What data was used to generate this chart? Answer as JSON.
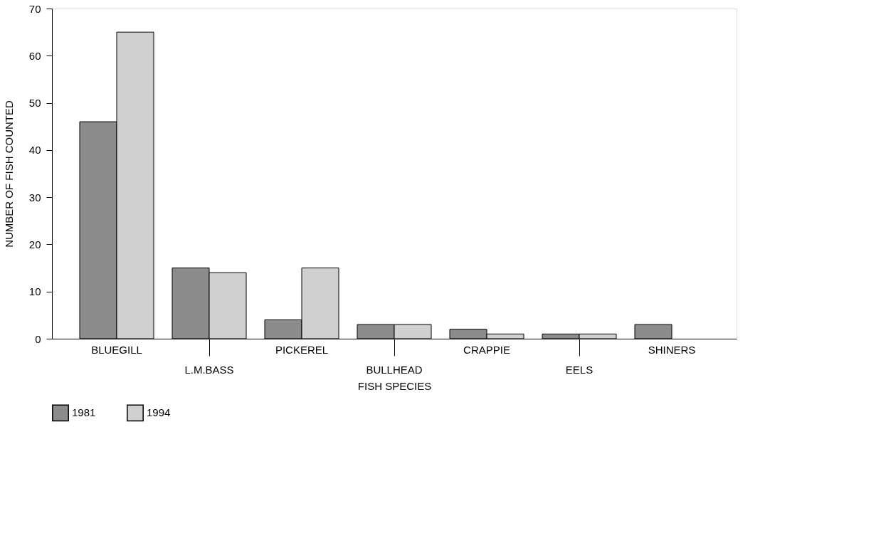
{
  "chart_data": {
    "type": "bar",
    "xlabel": "FISH SPECIES",
    "ylabel": "NUMBER OF FISH COUNTED",
    "categories": [
      "BLUEGILL",
      "L.M.BASS",
      "PICKEREL",
      "BULLHEAD",
      "CRAPPIE",
      "EELS",
      "SHINERS"
    ],
    "series": [
      {
        "name": "1981",
        "color": "#8c8c8c",
        "values": [
          46,
          15,
          4,
          3,
          2,
          1,
          3
        ]
      },
      {
        "name": "1994",
        "color": "#d0d0d0",
        "values": [
          65,
          14,
          15,
          3,
          1,
          1,
          null
        ]
      }
    ],
    "ylim": [
      0,
      70
    ],
    "yticks": [
      0,
      10,
      20,
      30,
      40,
      50,
      60,
      70
    ],
    "grid": false,
    "legend": "bottom"
  }
}
